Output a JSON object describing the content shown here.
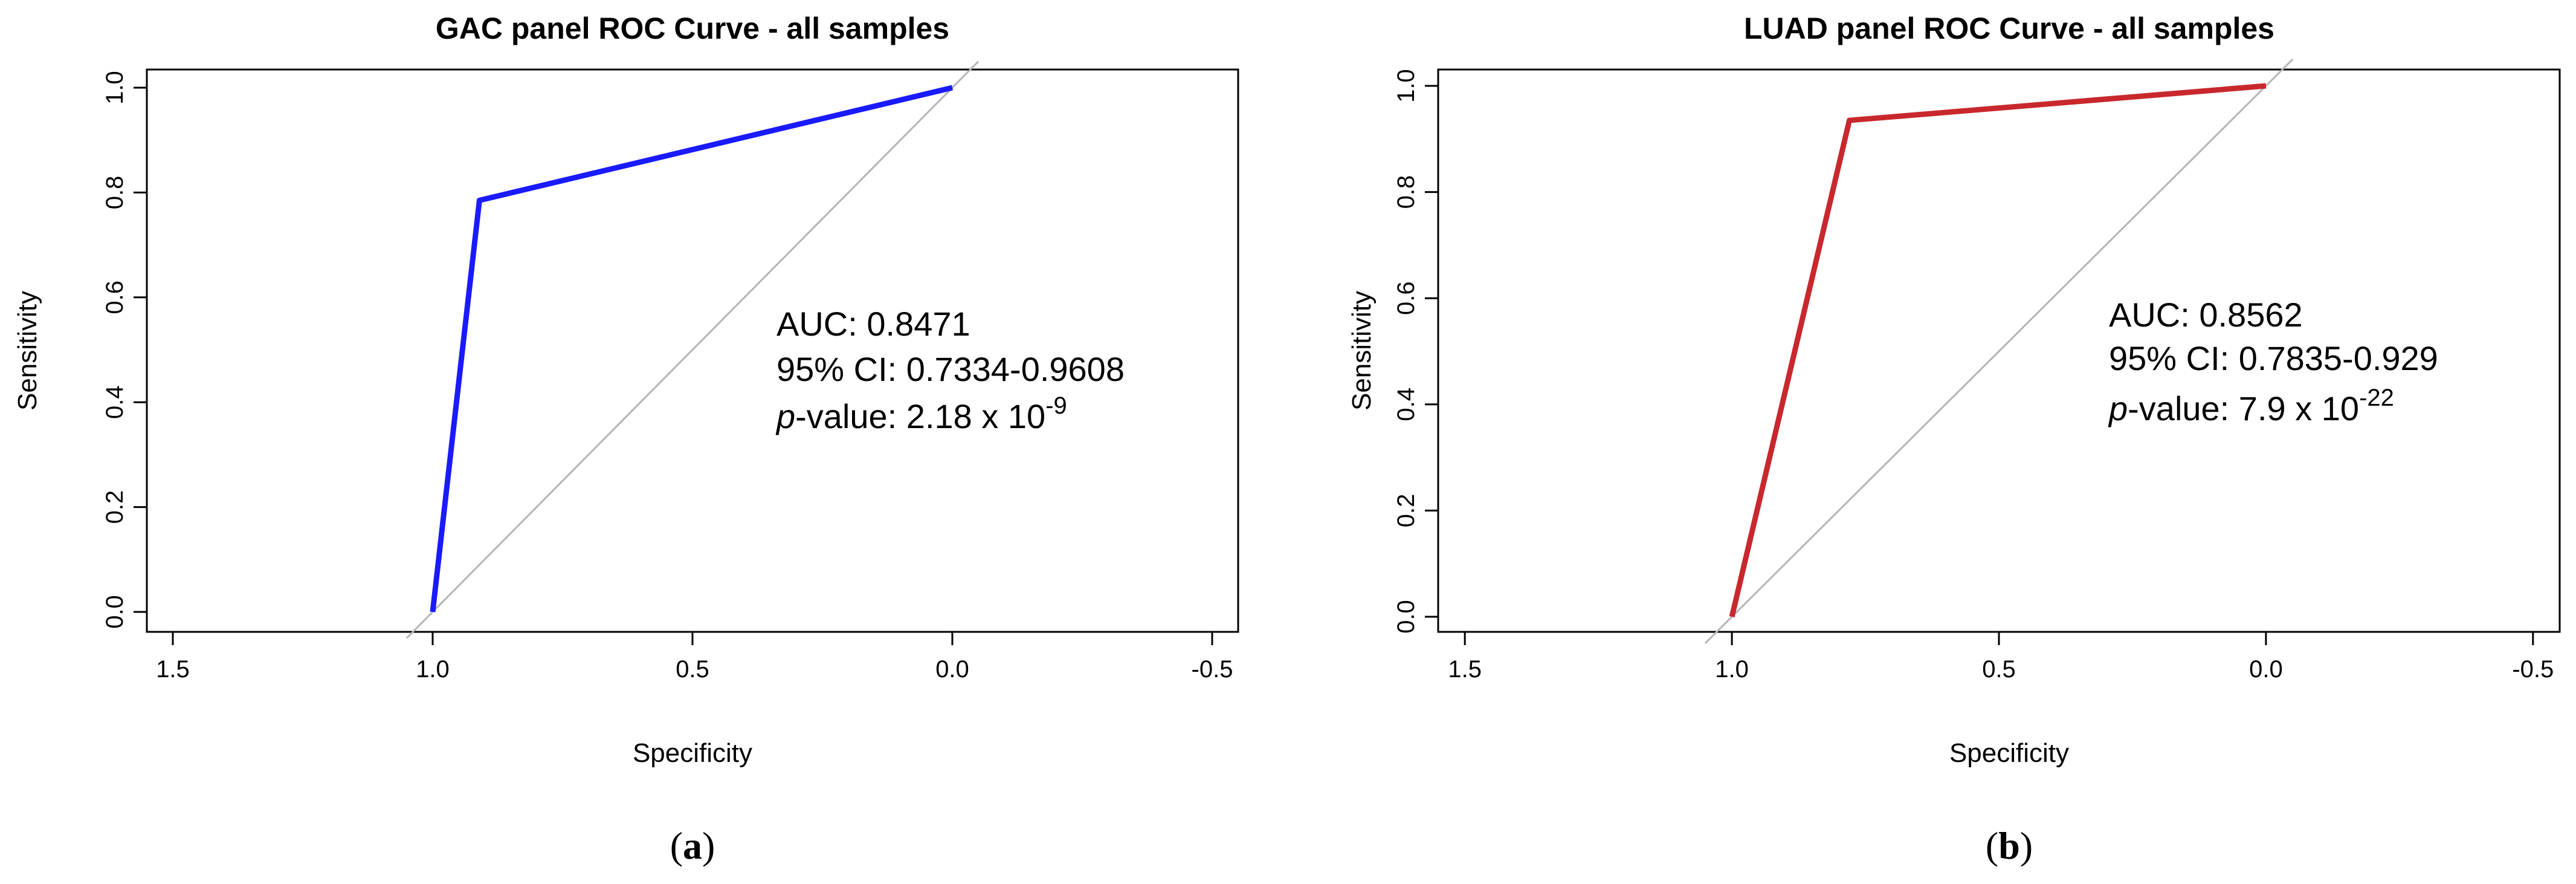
{
  "chart_data": [
    {
      "type": "line",
      "panel_label": "a",
      "title": "GAC panel ROC Curve - all samples",
      "xlabel": "Specificity",
      "ylabel": "Sensitivity",
      "xlim": [
        1.55,
        -0.55
      ],
      "ylim": [
        0,
        1
      ],
      "x_reversed": true,
      "xticks": [
        1.5,
        1.0,
        0.5,
        0.0,
        -0.5
      ],
      "xtick_labels": [
        "1.5",
        "1.0",
        "0.5",
        "0.0",
        "-0.5"
      ],
      "yticks": [
        0.0,
        0.2,
        0.4,
        0.6,
        0.8,
        1.0
      ],
      "ytick_labels": [
        "0.0",
        "0.2",
        "0.4",
        "0.6",
        "0.8",
        "1.0"
      ],
      "series": [
        {
          "color": "#1a1aff",
          "x": [
            1.0,
            0.91,
            0.0
          ],
          "y": [
            0.0,
            0.785,
            1.0
          ]
        }
      ],
      "reference_line": {
        "color": "#b5b5b5",
        "x": [
          1.05,
          -0.05
        ],
        "y": [
          -0.05,
          1.05
        ]
      },
      "annotations": {
        "auc": "AUC: 0.8471",
        "ci": "95% CI: 0.7334-0.9608",
        "p_prefix": "p",
        "p_label": "-value: 2.18 x 10",
        "p_exp": "-9"
      }
    },
    {
      "type": "line",
      "panel_label": "b",
      "title": "LUAD panel ROC Curve - all samples",
      "xlabel": "Specificity",
      "ylabel": "Sensitivity",
      "xlim": [
        1.55,
        -0.55
      ],
      "ylim": [
        0,
        1
      ],
      "x_reversed": true,
      "xticks": [
        1.5,
        1.0,
        0.5,
        0.0,
        -0.5
      ],
      "xtick_labels": [
        "1.5",
        "1.0",
        "0.5",
        "0.0",
        "-0.5"
      ],
      "yticks": [
        0.0,
        0.2,
        0.4,
        0.6,
        0.8,
        1.0
      ],
      "ytick_labels": [
        "0.0",
        "0.2",
        "0.4",
        "0.6",
        "0.8",
        "1.0"
      ],
      "series": [
        {
          "color": "#c8282d",
          "x": [
            1.0,
            0.78,
            0.0
          ],
          "y": [
            0.0,
            0.935,
            1.0
          ]
        }
      ],
      "reference_line": {
        "color": "#b5b5b5",
        "x": [
          1.05,
          -0.05
        ],
        "y": [
          -0.05,
          1.05
        ]
      },
      "annotations": {
        "auc": "AUC: 0.8562",
        "ci": "95% CI: 0.7835-0.929",
        "p_prefix": "p",
        "p_label": "-value: 7.9 x 10",
        "p_exp": "-22"
      }
    }
  ]
}
